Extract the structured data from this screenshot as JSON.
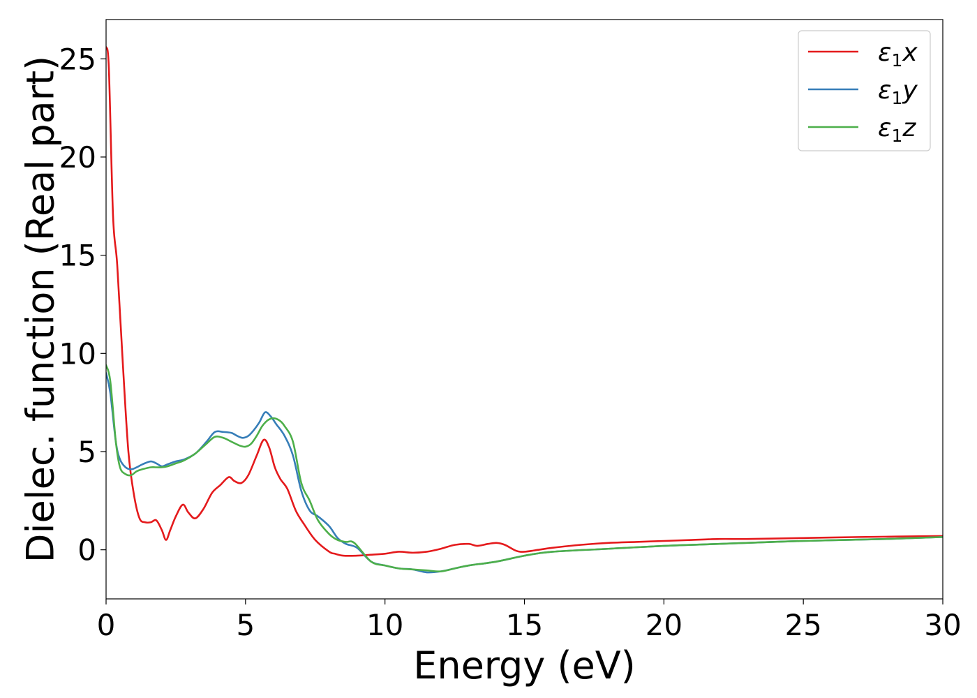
{
  "chart_data": {
    "type": "line",
    "title": "",
    "xlabel": "Energy (eV)",
    "ylabel": "Dielec. function (Real part)",
    "xlim": [
      0,
      30
    ],
    "ylim": [
      -2.5,
      27
    ],
    "xticks": [
      0,
      5,
      10,
      15,
      20,
      25,
      30
    ],
    "yticks": [
      0,
      5,
      10,
      15,
      20,
      25
    ],
    "grid": false,
    "legend_position": "top-right",
    "series": [
      {
        "name": "ε1x",
        "legend_base": "ε",
        "legend_sub": "1",
        "legend_var": "x",
        "color": "#e41a1c",
        "x": [
          0,
          0.1,
          0.25,
          0.4,
          0.6,
          0.8,
          1.0,
          1.2,
          1.4,
          1.6,
          1.8,
          2.0,
          2.15,
          2.3,
          2.5,
          2.75,
          2.95,
          3.2,
          3.5,
          3.8,
          4.1,
          4.4,
          4.6,
          4.85,
          5.1,
          5.4,
          5.65,
          5.85,
          6.05,
          6.25,
          6.5,
          6.8,
          7.1,
          7.5,
          8.0,
          8.2,
          8.5,
          9.0,
          9.5,
          10.0,
          10.5,
          11.0,
          11.5,
          12.0,
          12.5,
          13.0,
          13.3,
          13.7,
          14.0,
          14.3,
          14.7,
          15.0,
          15.5,
          16.0,
          17.0,
          18.0,
          19.0,
          20.0,
          21.0,
          22.0,
          23.0,
          25.0,
          27.0,
          30.0
        ],
        "y": [
          25.6,
          24.5,
          17.0,
          14.5,
          9.5,
          5.0,
          2.8,
          1.6,
          1.4,
          1.4,
          1.5,
          1.0,
          0.5,
          1.0,
          1.7,
          2.3,
          1.9,
          1.6,
          2.1,
          2.9,
          3.3,
          3.7,
          3.5,
          3.4,
          3.8,
          4.8,
          5.6,
          5.2,
          4.2,
          3.6,
          3.1,
          2.0,
          1.3,
          0.5,
          -0.1,
          -0.2,
          -0.3,
          -0.3,
          -0.25,
          -0.2,
          -0.1,
          -0.15,
          -0.1,
          0.05,
          0.25,
          0.3,
          0.2,
          0.3,
          0.35,
          0.25,
          -0.05,
          -0.1,
          0.0,
          0.1,
          0.25,
          0.35,
          0.4,
          0.45,
          0.5,
          0.55,
          0.55,
          0.6,
          0.65,
          0.7
        ]
      },
      {
        "name": "ε1y",
        "legend_base": "ε",
        "legend_sub": "1",
        "legend_var": "y",
        "color": "#377eb8",
        "x": [
          0,
          0.15,
          0.35,
          0.5,
          0.7,
          0.9,
          1.1,
          1.3,
          1.6,
          1.8,
          2.0,
          2.2,
          2.5,
          2.8,
          3.2,
          3.6,
          3.9,
          4.2,
          4.5,
          4.7,
          4.9,
          5.1,
          5.3,
          5.5,
          5.7,
          5.9,
          6.1,
          6.4,
          6.7,
          7.0,
          7.3,
          7.6,
          8.0,
          8.3,
          8.6,
          9.0,
          9.5,
          10.0,
          10.5,
          11.0,
          11.5,
          12.0,
          12.5,
          13.0,
          14.0,
          15.0,
          16.0,
          18.0,
          20.0,
          22.0,
          25.0,
          28.0,
          30.0
        ],
        "y": [
          9.0,
          8.0,
          5.5,
          4.6,
          4.2,
          4.1,
          4.2,
          4.35,
          4.5,
          4.4,
          4.25,
          4.35,
          4.5,
          4.6,
          4.9,
          5.5,
          6.0,
          6.0,
          5.95,
          5.8,
          5.7,
          5.8,
          6.1,
          6.5,
          7.0,
          6.8,
          6.4,
          5.8,
          4.8,
          3.0,
          2.0,
          1.7,
          1.2,
          0.6,
          0.3,
          0.1,
          -0.6,
          -0.8,
          -0.95,
          -1.0,
          -1.15,
          -1.1,
          -0.95,
          -0.8,
          -0.6,
          -0.3,
          -0.1,
          0.05,
          0.2,
          0.3,
          0.45,
          0.55,
          0.65
        ]
      },
      {
        "name": "ε1z",
        "legend_base": "ε",
        "legend_sub": "1",
        "legend_var": "z",
        "color": "#4daf4a",
        "x": [
          0,
          0.15,
          0.35,
          0.5,
          0.7,
          0.9,
          1.1,
          1.3,
          1.6,
          1.8,
          2.0,
          2.2,
          2.5,
          2.8,
          3.2,
          3.6,
          3.9,
          4.2,
          4.5,
          4.8,
          5.0,
          5.2,
          5.4,
          5.6,
          5.8,
          6.0,
          6.2,
          6.4,
          6.7,
          7.0,
          7.3,
          7.6,
          8.0,
          8.3,
          8.6,
          8.9,
          9.5,
          10.0,
          10.5,
          11.0,
          11.5,
          12.0,
          12.5,
          13.0,
          14.0,
          15.0,
          16.0,
          18.0,
          20.0,
          22.0,
          25.0,
          28.0,
          30.0
        ],
        "y": [
          9.4,
          8.6,
          5.5,
          4.2,
          3.85,
          3.8,
          4.0,
          4.1,
          4.2,
          4.2,
          4.2,
          4.25,
          4.4,
          4.55,
          4.9,
          5.4,
          5.75,
          5.7,
          5.5,
          5.3,
          5.25,
          5.4,
          5.8,
          6.3,
          6.6,
          6.7,
          6.6,
          6.3,
          5.5,
          3.4,
          2.5,
          1.5,
          0.8,
          0.5,
          0.4,
          0.35,
          -0.6,
          -0.8,
          -0.95,
          -1.0,
          -1.05,
          -1.1,
          -0.95,
          -0.8,
          -0.6,
          -0.3,
          -0.1,
          0.05,
          0.2,
          0.3,
          0.45,
          0.55,
          0.65
        ]
      }
    ]
  }
}
